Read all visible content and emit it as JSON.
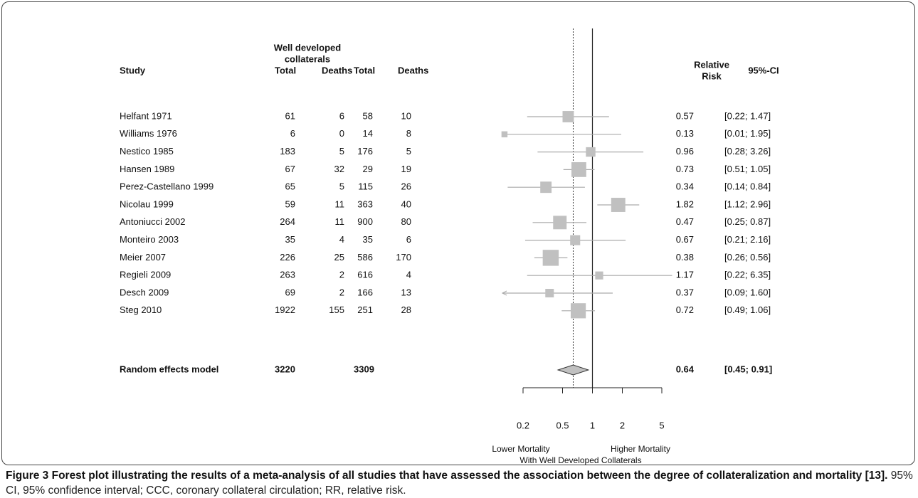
{
  "chart_data": {
    "type": "forest",
    "group_header": [
      "Well developed",
      "collaterals"
    ],
    "columns": {
      "study": "Study",
      "total1": "Total",
      "deaths1": "Deaths",
      "total2": "Total",
      "deaths2": "Deaths",
      "ci": "95%-CI"
    },
    "rr_header": [
      "Relative",
      "Risk"
    ],
    "studies": [
      "Helfant 1971",
      "Williams 1976",
      "Nestico 1985",
      "Hansen 1989",
      "Perez-Castellano 1999",
      "Nicolau 1999",
      "Antoniucci 2002",
      "Monteiro 2003",
      "Meier 2007",
      "Regieli 2009",
      "Desch 2009",
      "Steg 2010"
    ],
    "total1": [
      61,
      6,
      183,
      67,
      65,
      59,
      264,
      35,
      226,
      263,
      69,
      1922
    ],
    "deaths1": [
      6,
      0,
      5,
      32,
      5,
      11,
      11,
      4,
      25,
      2,
      2,
      155
    ],
    "total2": [
      58,
      14,
      176,
      29,
      115,
      363,
      900,
      35,
      586,
      616,
      166,
      251
    ],
    "deaths2": [
      10,
      8,
      5,
      19,
      26,
      40,
      80,
      6,
      170,
      4,
      13,
      28
    ],
    "rr": [
      0.57,
      0.13,
      0.96,
      0.73,
      0.34,
      1.82,
      0.47,
      0.67,
      0.38,
      1.17,
      0.37,
      0.72
    ],
    "lower": [
      0.22,
      0.01,
      0.28,
      0.51,
      0.14,
      1.12,
      0.25,
      0.21,
      0.26,
      0.22,
      0.09,
      0.49
    ],
    "upper": [
      1.47,
      1.95,
      3.26,
      1.05,
      0.84,
      2.96,
      0.87,
      2.16,
      0.56,
      6.35,
      1.6,
      1.06
    ],
    "ci_labels": [
      "[0.22; 1.47]",
      "[0.01; 1.95]",
      "[0.28; 3.26]",
      "[0.51; 1.05]",
      "[0.14; 0.84]",
      "[1.12; 2.96]",
      "[0.25; 0.87]",
      "[0.21; 2.16]",
      "[0.26; 0.56]",
      "[0.22; 6.35]",
      "[0.09; 1.60]",
      "[0.49; 1.06]"
    ],
    "weights": [
      7,
      2,
      5,
      12,
      7,
      11,
      10,
      5.5,
      14,
      3.5,
      4,
      12.5
    ],
    "summary": {
      "label": "Random effects model",
      "total1": 3220,
      "total2": 3309,
      "rr": 0.64,
      "lower": 0.45,
      "upper": 0.91,
      "ci_label": "[0.45; 0.91]"
    },
    "reference_line": 1,
    "log_scale": true,
    "xlim": [
      0.2,
      5
    ],
    "xticks": [
      0.2,
      0.5,
      1,
      2,
      5
    ],
    "x_label_left": "Lower Mortality",
    "x_label_right": "Higher Mortality",
    "x_label_bottom": "With Well Developed Collaterals",
    "box_color": "#c0c0c0"
  },
  "caption": {
    "label": "Figure 3 Forest plot illustrating the results of a meta-analysis of all studies that have assessed the association between the degree of collateralization and mortality [13].",
    "text": "95% CI, 95% confidence interval; CCC, coronary collateral circulation; RR, relative risk."
  }
}
